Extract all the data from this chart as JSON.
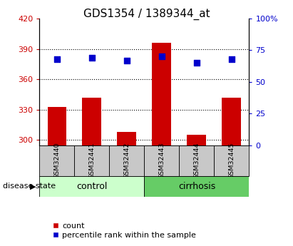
{
  "title": "GDS1354 / 1389344_at",
  "categories": [
    "GSM32440",
    "GSM32441",
    "GSM32442",
    "GSM32443",
    "GSM32444",
    "GSM32445"
  ],
  "bar_values": [
    333,
    342,
    308,
    396,
    305,
    342
  ],
  "percentile_values": [
    68,
    69,
    67,
    70,
    65,
    68
  ],
  "ylim_left": [
    295,
    420
  ],
  "ylim_right": [
    0,
    100
  ],
  "yticks_left": [
    300,
    330,
    360,
    390,
    420
  ],
  "yticks_right": [
    0,
    25,
    50,
    75,
    100
  ],
  "yticklabels_right": [
    "0",
    "25",
    "50",
    "75",
    "100%"
  ],
  "bar_color": "#cc0000",
  "dot_color": "#0000cc",
  "bar_width": 0.55,
  "bar_bottom": 295,
  "grid_color": "#000000",
  "bg_color": "#ffffff",
  "plot_bg": "#ffffff",
  "control_color": "#ccffcc",
  "cirrhosis_color": "#66cc66",
  "left_tick_color": "#cc0000",
  "right_tick_color": "#0000cc",
  "group_label_fontsize": 9,
  "tick_fontsize": 8,
  "title_fontsize": 11,
  "sample_box_color": "#c8c8c8",
  "legend_fontsize": 8
}
